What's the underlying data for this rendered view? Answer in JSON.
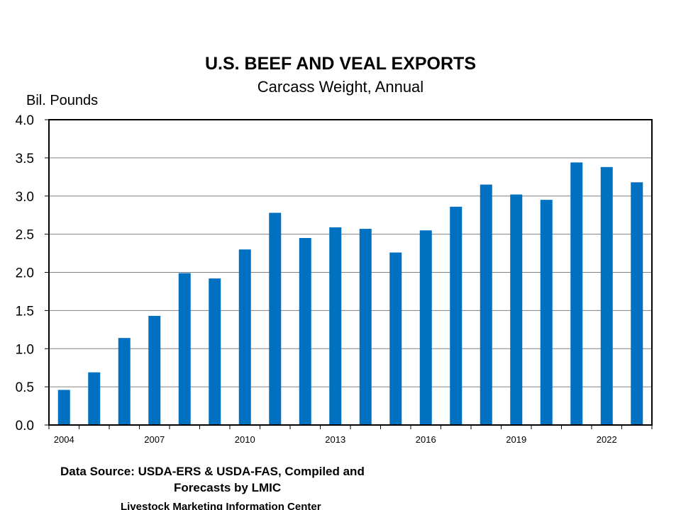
{
  "chart_data": {
    "type": "bar",
    "title": "U.S. BEEF AND VEAL EXPORTS",
    "subtitle": "Carcass Weight, Annual",
    "ylabel": "Bil. Pounds",
    "xlabel": "",
    "ylim": [
      0,
      4
    ],
    "yticks": [
      "0.0",
      "0.5",
      "1.0",
      "1.5",
      "2.0",
      "2.5",
      "3.0",
      "3.5",
      "4.0"
    ],
    "grid": true,
    "categories": [
      "2004",
      "2005",
      "2006",
      "2007",
      "2008",
      "2009",
      "2010",
      "2011",
      "2012",
      "2013",
      "2014",
      "2015",
      "2016",
      "2017",
      "2018",
      "2019",
      "2020",
      "2021",
      "2022",
      "2023"
    ],
    "xtick_labels": [
      "2004",
      "",
      "",
      "2007",
      "",
      "",
      "2010",
      "",
      "",
      "2013",
      "",
      "",
      "2016",
      "",
      "",
      "2019",
      "",
      "",
      "2022",
      ""
    ],
    "values": [
      0.46,
      0.69,
      1.14,
      1.43,
      1.99,
      1.92,
      2.3,
      2.78,
      2.45,
      2.59,
      2.57,
      2.26,
      2.55,
      2.86,
      3.15,
      3.02,
      2.95,
      3.44,
      3.38,
      3.18
    ],
    "bar_color": "#0070c0"
  },
  "footer": {
    "source_line1": "Data Source:  USDA-ERS & USDA-FAS, Compiled and",
    "source_line2": "Forecasts by LMIC",
    "organization": "Livestock Marketing Information Center"
  }
}
